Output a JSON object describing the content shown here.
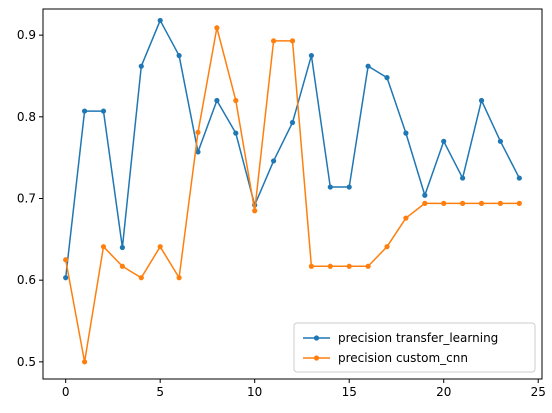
{
  "chart_data": {
    "type": "line",
    "title": "",
    "xlabel": "",
    "ylabel": "",
    "xlim": [
      -1.2,
      25.2
    ],
    "ylim": [
      0.479,
      0.932
    ],
    "x_ticks": [
      0,
      5,
      10,
      15,
      20,
      25
    ],
    "y_ticks": [
      0.5,
      0.6,
      0.7,
      0.8,
      0.9
    ],
    "grid": false,
    "legend_position": "lower-right",
    "series": [
      {
        "name": "precision transfer_learning",
        "color": "#1f77b4",
        "x": [
          0,
          1,
          2,
          3,
          4,
          5,
          6,
          7,
          8,
          9,
          10,
          11,
          12,
          13,
          14,
          15,
          16,
          17,
          18,
          19,
          20,
          21,
          22,
          23,
          24
        ],
        "values": [
          0.603,
          0.807,
          0.807,
          0.64,
          0.862,
          0.918,
          0.875,
          0.757,
          0.82,
          0.78,
          0.692,
          0.746,
          0.793,
          0.875,
          0.714,
          0.714,
          0.862,
          0.848,
          0.78,
          0.704,
          0.77,
          0.725,
          0.82,
          0.77,
          0.725
        ]
      },
      {
        "name": "precision custom_cnn",
        "color": "#ff7f0e",
        "x": [
          0,
          1,
          2,
          3,
          4,
          5,
          6,
          7,
          8,
          9,
          10,
          11,
          12,
          13,
          14,
          15,
          16,
          17,
          18,
          19,
          20,
          21,
          22,
          23,
          24
        ],
        "values": [
          0.625,
          0.5,
          0.641,
          0.617,
          0.603,
          0.641,
          0.603,
          0.781,
          0.909,
          0.82,
          0.685,
          0.893,
          0.893,
          0.617,
          0.617,
          0.617,
          0.617,
          0.641,
          0.676,
          0.694,
          0.694,
          0.694,
          0.694,
          0.694,
          0.694
        ]
      }
    ]
  }
}
